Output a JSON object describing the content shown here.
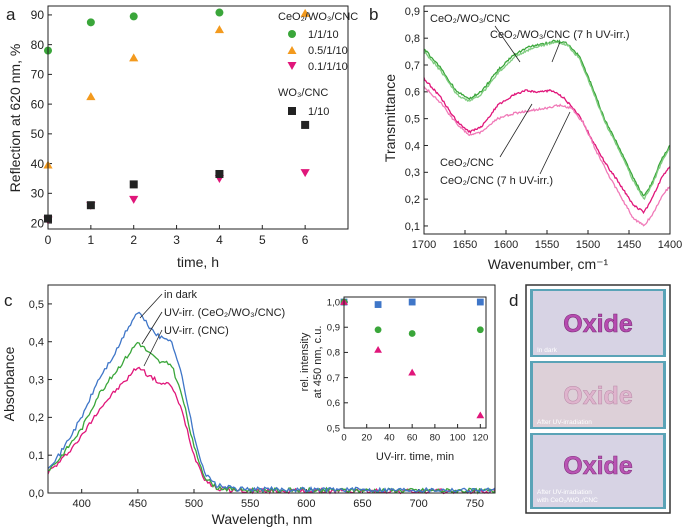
{
  "colors": {
    "green": "#3aa63a",
    "orange": "#f39a1e",
    "magenta": "#e0167a",
    "black": "#222222",
    "blue": "#3f76c8",
    "light_green": "#7fcc7f",
    "light_magenta": "#f07ab8",
    "photo_bg": "#5aa3b7"
  },
  "panels": {
    "a": "a",
    "b": "b",
    "c": "c",
    "d": "d"
  },
  "chart_data": [
    {
      "id": "a",
      "type": "scatter",
      "xlabel": "time, h",
      "ylabel": "Reflection at 620 nm, %",
      "xlim": [
        0,
        7
      ],
      "ylim": [
        18,
        93
      ],
      "xticks": [
        0,
        1,
        2,
        3,
        4,
        5,
        6
      ],
      "yticks": [
        20,
        30,
        40,
        50,
        60,
        70,
        80,
        90
      ],
      "legend_title_1": "CeO₂/WO₃/CNC",
      "legend_title_2": "WO₃/CNC",
      "series": [
        {
          "name": "1/1/10",
          "marker": "circle",
          "color_key": "green",
          "points": [
            [
              0,
              78
            ],
            [
              1,
              87.5
            ],
            [
              2,
              89.5
            ],
            [
              4,
              90.8
            ]
          ]
        },
        {
          "name": "0.5/1/10",
          "marker": "triangle-up",
          "color_key": "orange",
          "points": [
            [
              0,
              39.5
            ],
            [
              1,
              62.5
            ],
            [
              2,
              75.5
            ],
            [
              4,
              85
            ],
            [
              6,
              90.5
            ]
          ]
        },
        {
          "name": "0.1/1/10",
          "marker": "triangle-down",
          "color_key": "magenta",
          "points": [
            [
              0,
              21
            ],
            [
              1,
              26
            ],
            [
              2,
              28
            ],
            [
              4,
              35
            ],
            [
              6,
              37
            ]
          ]
        },
        {
          "name": "1/10",
          "marker": "square",
          "color_key": "black",
          "points": [
            [
              0,
              21.5
            ],
            [
              1,
              26
            ],
            [
              2,
              33
            ],
            [
              4,
              36.5
            ],
            [
              6,
              53
            ]
          ]
        }
      ]
    },
    {
      "id": "b",
      "type": "line",
      "xlabel": "Wavenumber, cm⁻¹",
      "ylabel": "Transmittance",
      "xlim": [
        1700,
        1400
      ],
      "ylim": [
        0.07,
        0.92
      ],
      "xticks": [
        1700,
        1650,
        1600,
        1550,
        1500,
        1450,
        1400
      ],
      "yticks": [
        "0,1",
        "0,2",
        "0,3",
        "0,4",
        "0,5",
        "0,6",
        "0,7",
        "0,8",
        "0,9"
      ],
      "annotations": [
        "CeO₂/WO₃/CNC",
        "CeO₂/WO₃/CNC (7 h UV-irr.)",
        "CeO₂/CNC",
        "CeO₂/CNC (7 h UV-irr.)"
      ],
      "series": [
        {
          "name": "CeO₂/WO₃/CNC",
          "color_key": "green",
          "noise": 0.004,
          "seed": 11,
          "points": [
            [
              1700,
              0.76
            ],
            [
              1680,
              0.69
            ],
            [
              1660,
              0.6
            ],
            [
              1645,
              0.575
            ],
            [
              1630,
              0.6
            ],
            [
              1610,
              0.68
            ],
            [
              1590,
              0.74
            ],
            [
              1570,
              0.77
            ],
            [
              1560,
              0.775
            ],
            [
              1540,
              0.79
            ],
            [
              1525,
              0.78
            ],
            [
              1510,
              0.73
            ],
            [
              1495,
              0.62
            ],
            [
              1480,
              0.5
            ],
            [
              1460,
              0.38
            ],
            [
              1445,
              0.28
            ],
            [
              1432,
              0.21
            ],
            [
              1422,
              0.26
            ],
            [
              1410,
              0.35
            ],
            [
              1400,
              0.4
            ]
          ]
        },
        {
          "name": "CeO₂/WO₃/CNC (7 h UV-irr.)",
          "color_key": "light_green",
          "noise": 0.004,
          "seed": 23,
          "points": [
            [
              1700,
              0.75
            ],
            [
              1680,
              0.68
            ],
            [
              1660,
              0.59
            ],
            [
              1645,
              0.565
            ],
            [
              1630,
              0.59
            ],
            [
              1610,
              0.67
            ],
            [
              1590,
              0.73
            ],
            [
              1570,
              0.76
            ],
            [
              1560,
              0.77
            ],
            [
              1540,
              0.785
            ],
            [
              1525,
              0.775
            ],
            [
              1510,
              0.72
            ],
            [
              1495,
              0.61
            ],
            [
              1480,
              0.49
            ],
            [
              1460,
              0.37
            ],
            [
              1445,
              0.27
            ],
            [
              1432,
              0.2
            ],
            [
              1422,
              0.25
            ],
            [
              1410,
              0.34
            ],
            [
              1400,
              0.39
            ]
          ]
        },
        {
          "name": "CeO₂/CNC",
          "color_key": "magenta",
          "noise": 0.004,
          "seed": 37,
          "points": [
            [
              1700,
              0.65
            ],
            [
              1680,
              0.58
            ],
            [
              1660,
              0.49
            ],
            [
              1645,
              0.45
            ],
            [
              1630,
              0.47
            ],
            [
              1610,
              0.55
            ],
            [
              1590,
              0.59
            ],
            [
              1575,
              0.605
            ],
            [
              1560,
              0.6
            ],
            [
              1545,
              0.605
            ],
            [
              1530,
              0.58
            ],
            [
              1510,
              0.51
            ],
            [
              1495,
              0.42
            ],
            [
              1480,
              0.34
            ],
            [
              1460,
              0.25
            ],
            [
              1445,
              0.18
            ],
            [
              1432,
              0.15
            ],
            [
              1422,
              0.2
            ],
            [
              1410,
              0.28
            ],
            [
              1400,
              0.32
            ]
          ]
        },
        {
          "name": "CeO₂/CNC (7 h UV-irr.)",
          "color_key": "light_magenta",
          "noise": 0.004,
          "seed": 53,
          "points": [
            [
              1700,
              0.62
            ],
            [
              1680,
              0.56
            ],
            [
              1660,
              0.48
            ],
            [
              1645,
              0.44
            ],
            [
              1630,
              0.45
            ],
            [
              1610,
              0.5
            ],
            [
              1590,
              0.52
            ],
            [
              1570,
              0.53
            ],
            [
              1550,
              0.54
            ],
            [
              1535,
              0.55
            ],
            [
              1520,
              0.54
            ],
            [
              1505,
              0.48
            ],
            [
              1490,
              0.38
            ],
            [
              1475,
              0.29
            ],
            [
              1460,
              0.21
            ],
            [
              1445,
              0.13
            ],
            [
              1432,
              0.1
            ],
            [
              1422,
              0.14
            ],
            [
              1410,
              0.21
            ],
            [
              1400,
              0.25
            ]
          ]
        }
      ]
    },
    {
      "id": "c",
      "type": "line",
      "xlabel": "Wavelength, nm",
      "ylabel": "Absorbance",
      "xlim": [
        370,
        768
      ],
      "ylim": [
        0,
        0.55
      ],
      "xticks": [
        400,
        450,
        500,
        550,
        600,
        650,
        700,
        750
      ],
      "yticks": [
        "0,0",
        "0,1",
        "0,2",
        "0,3",
        "0,4",
        "0,5"
      ],
      "annotations": [
        "in dark",
        "UV-irr. (CeO₂/WO₃/CNC)",
        "UV-irr. (CNC)"
      ],
      "series": [
        {
          "name": "in dark",
          "color_key": "blue",
          "noise": 0.006,
          "seed": 71,
          "points": [
            [
              370,
              0.07
            ],
            [
              380,
              0.1
            ],
            [
              400,
              0.2
            ],
            [
              415,
              0.3
            ],
            [
              430,
              0.37
            ],
            [
              440,
              0.43
            ],
            [
              450,
              0.48
            ],
            [
              460,
              0.44
            ],
            [
              470,
              0.41
            ],
            [
              480,
              0.405
            ],
            [
              490,
              0.3
            ],
            [
              500,
              0.15
            ],
            [
              510,
              0.05
            ],
            [
              520,
              0.02
            ],
            [
              540,
              0.01
            ],
            [
              768,
              0.008
            ]
          ]
        },
        {
          "name": "UV-irr. (CeO₂/WO₃/CNC)",
          "color_key": "green",
          "noise": 0.006,
          "seed": 83,
          "points": [
            [
              370,
              0.06
            ],
            [
              380,
              0.09
            ],
            [
              400,
              0.17
            ],
            [
              415,
              0.26
            ],
            [
              430,
              0.32
            ],
            [
              440,
              0.36
            ],
            [
              450,
              0.4
            ],
            [
              460,
              0.37
            ],
            [
              470,
              0.345
            ],
            [
              480,
              0.34
            ],
            [
              490,
              0.25
            ],
            [
              500,
              0.12
            ],
            [
              510,
              0.04
            ],
            [
              520,
              0.015
            ],
            [
              540,
              0.008
            ],
            [
              768,
              0.006
            ]
          ]
        },
        {
          "name": "UV-irr. (CNC)",
          "color_key": "magenta",
          "noise": 0.006,
          "seed": 97,
          "points": [
            [
              370,
              0.055
            ],
            [
              380,
              0.08
            ],
            [
              400,
              0.15
            ],
            [
              415,
              0.22
            ],
            [
              430,
              0.27
            ],
            [
              440,
              0.3
            ],
            [
              450,
              0.335
            ],
            [
              460,
              0.31
            ],
            [
              470,
              0.29
            ],
            [
              480,
              0.285
            ],
            [
              490,
              0.21
            ],
            [
              500,
              0.1
            ],
            [
              510,
              0.035
            ],
            [
              520,
              0.012
            ],
            [
              540,
              0.006
            ],
            [
              768,
              0.004
            ]
          ]
        }
      ]
    },
    {
      "id": "c-inset",
      "type": "scatter",
      "xlabel": "UV-irr. time, min",
      "ylabel_1": "rel. intensity",
      "ylabel_2": "at 450 nm, c.u.",
      "xlim": [
        0,
        125
      ],
      "ylim": [
        0.5,
        1.02
      ],
      "xticks": [
        0,
        20,
        40,
        60,
        80,
        100,
        120
      ],
      "yticks": [
        "0,5",
        "0,6",
        "0,7",
        "0,8",
        "0,9",
        "1,0"
      ],
      "series": [
        {
          "name": "dark",
          "marker": "square",
          "color_key": "blue",
          "points": [
            [
              0,
              1.0
            ],
            [
              30,
              0.99
            ],
            [
              60,
              1.0
            ],
            [
              120,
              1.0
            ]
          ]
        },
        {
          "name": "CeO₂/WO₃/CNC",
          "marker": "circle",
          "color_key": "green",
          "points": [
            [
              0,
              1.0
            ],
            [
              30,
              0.89
            ],
            [
              60,
              0.875
            ],
            [
              120,
              0.89
            ]
          ]
        },
        {
          "name": "CNC",
          "marker": "triangle-up",
          "color_key": "magenta",
          "points": [
            [
              0,
              1.0
            ],
            [
              30,
              0.81
            ],
            [
              60,
              0.72
            ],
            [
              120,
              0.55
            ]
          ]
        }
      ]
    }
  ],
  "photos": {
    "word": "Oxide",
    "captions": [
      "In dark",
      "After UV-irradiation",
      "After UV-irradiation",
      "with CeO₂/WO₃/CNC"
    ]
  }
}
